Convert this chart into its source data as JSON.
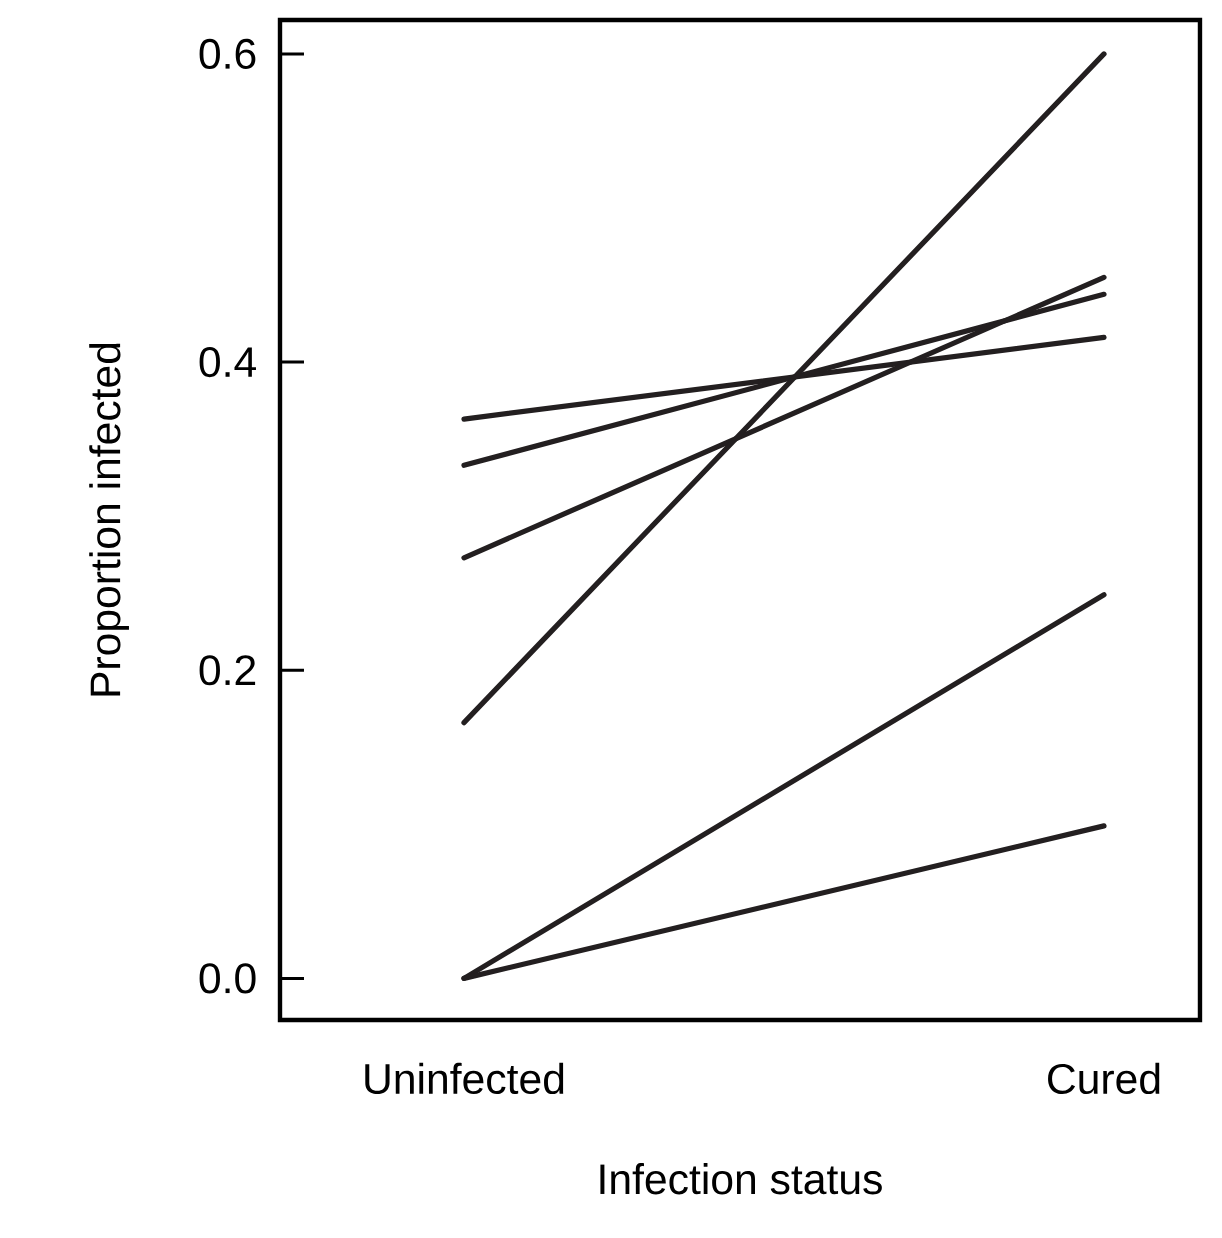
{
  "chart_data": {
    "type": "line",
    "xlabel": "Infection status",
    "ylabel": "Proportion infected",
    "categories": [
      "Uninfected",
      "Cured"
    ],
    "series": [
      {
        "color": "#231f20",
        "values": [
          0.363,
          0.416
        ]
      },
      {
        "color": "#231f20",
        "values": [
          0.333,
          0.444
        ]
      },
      {
        "color": "#231f20",
        "values": [
          0.273,
          0.455
        ]
      },
      {
        "color": "#231f20",
        "values": [
          0.166,
          0.6
        ]
      },
      {
        "color": "#231f20",
        "values": [
          0,
          0.249
        ]
      },
      {
        "color": "#231f20",
        "values": [
          0,
          0.099
        ]
      }
    ],
    "ylim": [
      -0.027,
      0.622
    ],
    "yticks": [
      {
        "value": 0,
        "label": "0.0"
      },
      0.2,
      0.4,
      0.6
    ],
    "marker": "none"
  }
}
